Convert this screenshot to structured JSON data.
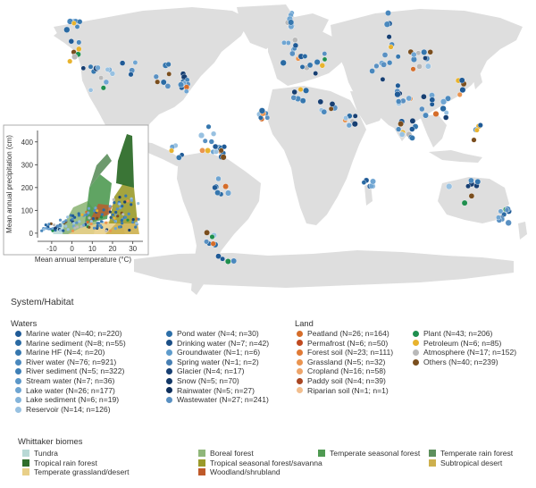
{
  "chart_data": [
    {
      "type": "scatter",
      "subtype": "world-map",
      "description_visible": "World map with sample locations coloured by system/habitat",
      "legend_title": "System/Habitat",
      "groups": [
        {
          "name": "Waters",
          "items": [
            {
              "label": "Marine water (N=40; n=220)",
              "color": "#1f5a96"
            },
            {
              "label": "Marine sediment (N=8; n=55)",
              "color": "#2a6aa3"
            },
            {
              "label": "Marine HF (N=4; n=20)",
              "color": "#3677ae"
            },
            {
              "label": "River water (N=76; n=921)",
              "color": "#4a88bd"
            },
            {
              "label": "River sediment (N=5; n=322)",
              "color": "#3e7fb6"
            },
            {
              "label": "Stream water (N=7; n=36)",
              "color": "#5b97c8"
            },
            {
              "label": "Lake water (N=26; n=177)",
              "color": "#6fa5d2"
            },
            {
              "label": "Lake sediment (N=6; n=19)",
              "color": "#84b4da"
            },
            {
              "label": "Reservoir (N=14; n=126)",
              "color": "#98c1e1"
            },
            {
              "label": "Pond water (N=4; n=30)",
              "color": "#2d6fa8"
            },
            {
              "label": "Drinking water (N=7; n=42)",
              "color": "#1b4f86"
            },
            {
              "label": "Groundwater (N=1; n=6)",
              "color": "#5e9bcb"
            },
            {
              "label": "Spring water (N=1; n=2)",
              "color": "#477fb3"
            },
            {
              "label": "Glacier (N=4; n=17)",
              "color": "#173f72"
            },
            {
              "label": "Snow (N=5; n=70)",
              "color": "#123766"
            },
            {
              "label": "Rainwater (N=5; n=27)",
              "color": "#0e2f5c"
            },
            {
              "label": "Wastewater (N=27; n=241)",
              "color": "#5990c2"
            }
          ]
        },
        {
          "name": "Land",
          "items": [
            {
              "label": "Peatland (N=26; n=164)",
              "color": "#d56d2a"
            },
            {
              "label": "Permafrost (N=6; n=50)",
              "color": "#c04a20"
            },
            {
              "label": "Forest soil (N=23; n=111)",
              "color": "#e07a36"
            },
            {
              "label": "Grassland (N=5; n=32)",
              "color": "#ea9450"
            },
            {
              "label": "Cropland (N=16; n=58)",
              "color": "#eda46a"
            },
            {
              "label": "Paddy soil (N=4; n=39)",
              "color": "#a84622"
            },
            {
              "label": "Riparian soil (N=1; n=1)",
              "color": "#f2be8e"
            }
          ]
        },
        {
          "name": "",
          "items": [
            {
              "label": "Plant (N=43; n=206)",
              "color": "#1f8f4e"
            },
            {
              "label": "Petroleum (N=6; n=85)",
              "color": "#e8b32e"
            },
            {
              "label": "Atmosphere (N=17; n=152)",
              "color": "#b9b9b9"
            },
            {
              "label": "Others (N=40; n=239)",
              "color": "#7a4e1e"
            }
          ]
        }
      ],
      "points_count_shown": "many"
    },
    {
      "type": "scatter",
      "subtype": "whittaker-biome-inset",
      "title": "",
      "xlabel": "Mean annual temperature (°C)",
      "ylabel": "Mean annual precipitation (cm)",
      "xlim": [
        -17,
        35
      ],
      "ylim": [
        -20,
        450
      ],
      "xticks": [
        "-10",
        "0",
        "10",
        "20",
        "30"
      ],
      "yticks": [
        "0",
        "100",
        "200",
        "300",
        "400"
      ],
      "legend_title": "Whittaker biomes",
      "biomes": [
        {
          "label": "Tundra",
          "color": "#b9d9d6"
        },
        {
          "label": "Tropical rain forest",
          "color": "#2f6e2b"
        },
        {
          "label": "Temperate grassland/desert",
          "color": "#e8cf88"
        },
        {
          "label": "Boreal forest",
          "color": "#90b77a"
        },
        {
          "label": "Tropical seasonal forest/savanna",
          "color": "#9a9a2a"
        },
        {
          "label": "Woodland/shrubland",
          "color": "#bf5a2a"
        },
        {
          "label": "Temperate seasonal forest",
          "color": "#4f9a52"
        },
        {
          "label": "Temperate rain forest",
          "color": "#5d8f5d"
        },
        {
          "label": "Subtropical desert",
          "color": "#cdb04e"
        }
      ]
    }
  ],
  "text": {
    "map_legend_title": "System/Habitat",
    "waters_title": "Waters",
    "land_title": "Land",
    "biomes_title": "Whittaker biomes",
    "inset_xlabel": "Mean annual temperature (°C)",
    "inset_ylabel": "Mean annual precipitation (cm)"
  }
}
